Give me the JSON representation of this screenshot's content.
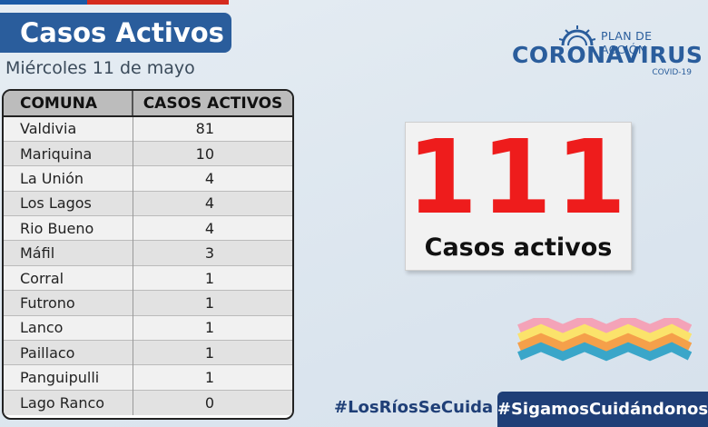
{
  "header": {
    "title": "Casos Activos",
    "date": "Miércoles 11 de mayo"
  },
  "table": {
    "columns": [
      "COMUNA",
      "CASOS ACTIVOS"
    ],
    "rows": [
      {
        "comuna": "Valdivia",
        "casos": "81"
      },
      {
        "comuna": "Mariquina",
        "casos": "10"
      },
      {
        "comuna": "La Unión",
        "casos": "4"
      },
      {
        "comuna": "Los Lagos",
        "casos": "4"
      },
      {
        "comuna": "Rio Bueno",
        "casos": "4"
      },
      {
        "comuna": "Máfil",
        "casos": "3"
      },
      {
        "comuna": "Corral",
        "casos": "1"
      },
      {
        "comuna": "Futrono",
        "casos": "1"
      },
      {
        "comuna": "Lanco",
        "casos": "1"
      },
      {
        "comuna": "Paillaco",
        "casos": "1"
      },
      {
        "comuna": "Panguipulli",
        "casos": "1"
      },
      {
        "comuna": "Lago Ranco",
        "casos": "0"
      }
    ]
  },
  "logo": {
    "plan": "PLAN DE ACCIÓN",
    "name": "CORONAVIRUS",
    "sub": "COVID-19"
  },
  "total": {
    "value": "111",
    "label": "Casos activos"
  },
  "footer": {
    "hashtag_left": "#LosRíosSeCuida",
    "hashtag_right": "#SigamosCuidándonos"
  },
  "colors": {
    "brand_blue": "#2a5d9c",
    "highlight_red": "#ee1c1c",
    "footer_navy": "#1f3f77"
  }
}
